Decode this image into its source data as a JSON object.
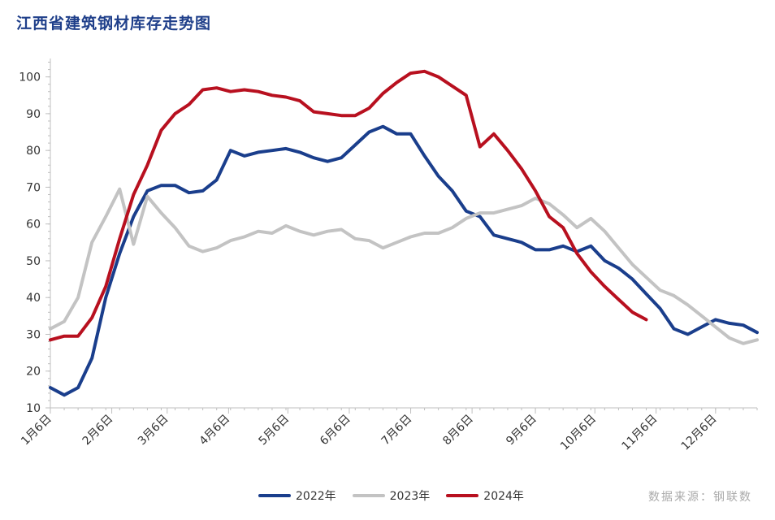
{
  "title": "江西省建筑钢材库存走势图",
  "source": "数据来源：钢联数",
  "chart_data": {
    "type": "line",
    "ylim": [
      10,
      105
    ],
    "yticks": [
      10,
      20,
      30,
      40,
      50,
      60,
      70,
      80,
      90,
      100
    ],
    "x_tick_labels": [
      "1月6日",
      "2月6日",
      "3月6日",
      "4月6日",
      "5月6日",
      "6月6日",
      "7月6日",
      "8月6日",
      "9月6日",
      "10月6日",
      "11月6日",
      "12月6日"
    ],
    "x_tick_weeks": [
      0,
      4.43,
      8.43,
      12.86,
      17.14,
      21.57,
      26,
      30.43,
      35,
      39.29,
      43.71,
      48
    ],
    "n_weeks": 51,
    "series": [
      {
        "name": "2022年",
        "color": "#1a3e8c",
        "values": [
          15.5,
          13.5,
          15.5,
          23.5,
          40,
          52,
          62,
          69,
          70.5,
          70.5,
          68.5,
          69,
          72,
          80,
          78.5,
          79.5,
          80,
          80.5,
          79.5,
          78,
          77,
          78,
          81.5,
          85,
          86.5,
          84.5,
          84.5,
          78.5,
          73,
          69,
          63.5,
          62,
          57,
          56,
          55,
          53,
          53,
          54,
          52.5,
          54,
          50,
          48,
          45,
          41,
          37,
          31.5,
          30,
          32,
          34,
          33,
          32.5,
          30.5
        ]
      },
      {
        "name": "2023年",
        "color": "#c3c3c3",
        "values": [
          31.5,
          33.5,
          40,
          55,
          62,
          69.5,
          54.5,
          67.5,
          63,
          59,
          54,
          52.5,
          53.5,
          55.5,
          56.5,
          58,
          57.5,
          59.5,
          58,
          57,
          58,
          58.5,
          56,
          55.5,
          53.5,
          55,
          56.5,
          57.5,
          57.5,
          59,
          61.5,
          63,
          63,
          64,
          65,
          67,
          65.5,
          62.5,
          59,
          61.5,
          58,
          53.5,
          49,
          45.5,
          42,
          40.5,
          38,
          35,
          32,
          29,
          27.5,
          28.5
        ]
      },
      {
        "name": "2024年",
        "color": "#b8101f",
        "values": [
          28.5,
          29.5,
          29.5,
          34.5,
          43,
          56,
          68,
          76,
          85.5,
          90,
          92.5,
          96.5,
          97,
          96,
          96.5,
          96,
          95,
          94.5,
          93.5,
          90.5,
          90,
          89.5,
          89.5,
          91.5,
          95.5,
          98.5,
          101,
          101.5,
          100,
          97.5,
          95,
          81,
          84.5,
          80,
          75,
          69,
          62,
          59,
          52,
          47,
          43,
          39.5,
          36,
          34
        ]
      }
    ]
  }
}
